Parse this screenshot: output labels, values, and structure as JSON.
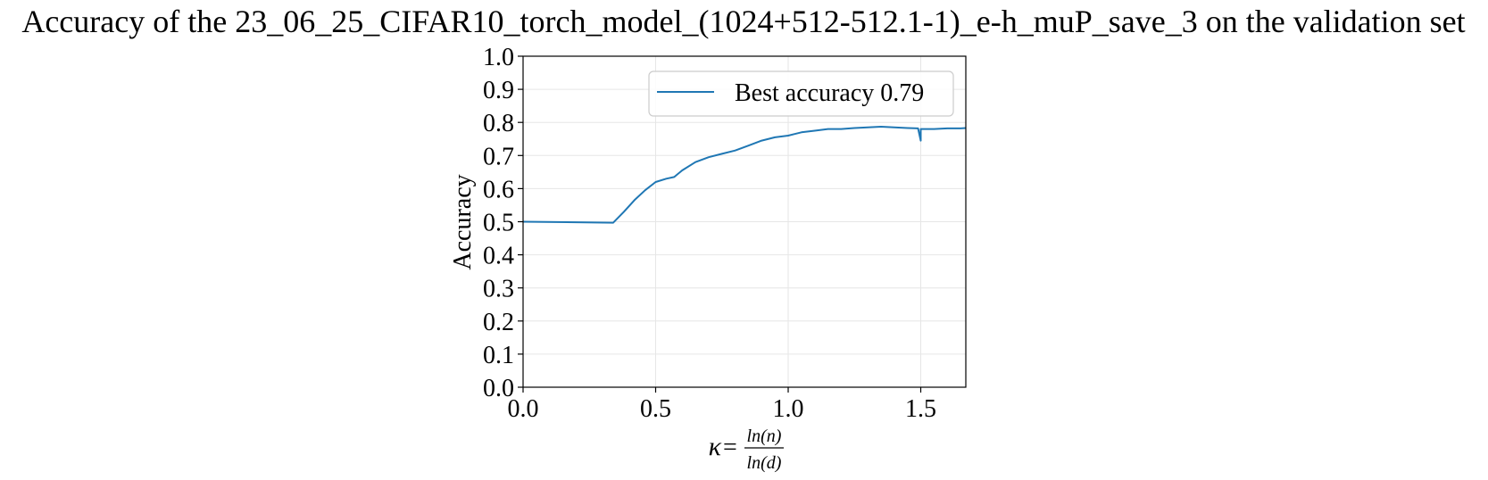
{
  "chart_data": {
    "type": "line",
    "title": "Accuracy of the 23_06_25_CIFAR10_torch_model_(1024+512-512.1-1)_e-h_muP_save_3 on the validation set",
    "xlabel": {
      "symbol": "κ",
      "equals": "=",
      "numerator": "ln(n)",
      "denominator": "ln(d)"
    },
    "ylabel": "Accuracy",
    "xlim": [
      0.0,
      1.67
    ],
    "ylim": [
      0.0,
      1.0
    ],
    "xticks": [
      "0.0",
      "0.5",
      "1.0",
      "1.5"
    ],
    "yticks": [
      "0.0",
      "0.1",
      "0.2",
      "0.3",
      "0.4",
      "0.5",
      "0.6",
      "0.7",
      "0.8",
      "0.9",
      "1.0"
    ],
    "grid": true,
    "legend_position": "upper-right",
    "series": [
      {
        "name": "Best accuracy 0.79",
        "color": "#1f77b4",
        "x": [
          0.0,
          0.34,
          0.38,
          0.42,
          0.46,
          0.5,
          0.54,
          0.57,
          0.6,
          0.65,
          0.7,
          0.75,
          0.8,
          0.85,
          0.9,
          0.95,
          1.0,
          1.05,
          1.1,
          1.15,
          1.2,
          1.25,
          1.3,
          1.35,
          1.4,
          1.45,
          1.49,
          1.5,
          1.5,
          1.51,
          1.55,
          1.6,
          1.65,
          1.67
        ],
        "y": [
          0.5,
          0.497,
          0.53,
          0.565,
          0.595,
          0.62,
          0.63,
          0.635,
          0.655,
          0.68,
          0.695,
          0.705,
          0.715,
          0.73,
          0.745,
          0.755,
          0.76,
          0.77,
          0.775,
          0.78,
          0.78,
          0.783,
          0.785,
          0.787,
          0.785,
          0.783,
          0.782,
          0.745,
          0.78,
          0.78,
          0.78,
          0.782,
          0.782,
          0.783
        ]
      }
    ]
  }
}
